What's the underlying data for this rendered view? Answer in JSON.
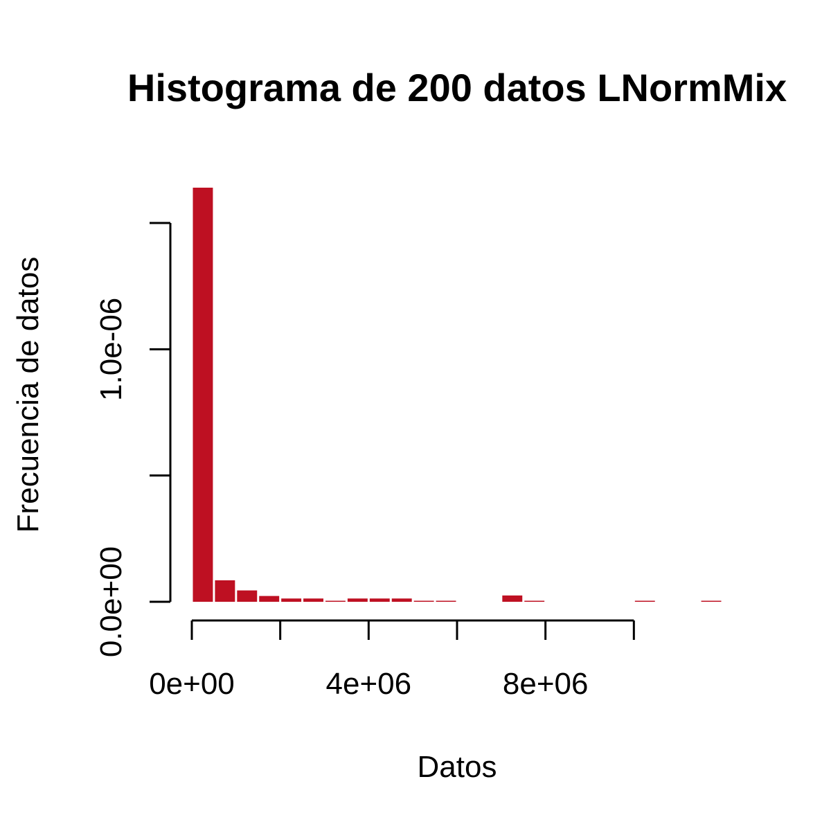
{
  "chart_data": {
    "type": "bar",
    "title": "Histograma de 200 datos LNormMix",
    "xlabel": "Datos",
    "ylabel": "Frecuencia de datos",
    "bar_color": "#BE1022",
    "bin_width": 500000,
    "bin_start": 0,
    "density": [
      1.64e-06,
      8.5e-08,
      4.5e-08,
      2.3e-08,
      1.3e-08,
      1.3e-08,
      2e-09,
      1.3e-08,
      1.3e-08,
      1.3e-08,
      2e-09,
      2e-09,
      0,
      0,
      2.5e-08,
      2e-09,
      0,
      0,
      0,
      0,
      2e-09,
      0,
      0,
      2e-09
    ],
    "xlim": [
      0,
      12000000
    ],
    "ylim": [
      0,
      1.64e-06
    ],
    "x_ticks": [
      0,
      2000000,
      4000000,
      6000000,
      8000000,
      10000000
    ],
    "x_tick_labels": [
      {
        "value": 0,
        "label": "0e+00"
      },
      {
        "value": 4000000,
        "label": "4e+06"
      },
      {
        "value": 8000000,
        "label": "8e+06"
      }
    ],
    "y_ticks": [
      0,
      5e-07,
      1e-06,
      1.5e-06
    ],
    "y_tick_labels": [
      {
        "value": 0,
        "label": "0.0e+00"
      },
      {
        "value": 1e-06,
        "label": "1.0e-06"
      }
    ],
    "grid": false
  }
}
